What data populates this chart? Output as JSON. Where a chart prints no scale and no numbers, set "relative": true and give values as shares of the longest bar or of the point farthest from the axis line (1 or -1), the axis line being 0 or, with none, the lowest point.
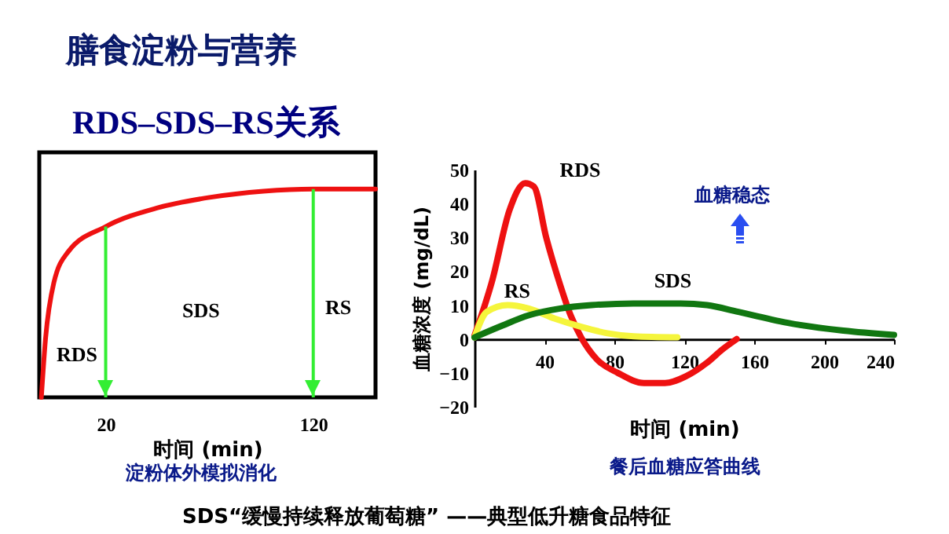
{
  "chart_data": [
    {
      "type": "line",
      "title": "膳食淀粉与营养",
      "subtitle": "RDS–SDS–RS关系",
      "relative": true,
      "xlabel": "时间 (min)",
      "xlim": [
        -12,
        150
      ],
      "xticks": [
        20,
        120
      ],
      "tick_labels": "x",
      "series": [
        {
          "color": "#ee1111",
          "x": [
            -11,
            -9,
            -5,
            2,
            20,
            45,
            70,
            96,
            120,
            150
          ],
          "values": [
            0,
            0.28,
            0.55,
            0.7,
            0.82,
            0.91,
            0.96,
            0.99,
            1,
            1
          ]
        }
      ],
      "ref_lines": [
        {
          "axis": "x",
          "value": 20,
          "color": "#33ee33"
        },
        {
          "axis": "x",
          "value": 120,
          "color": "#33ee33"
        }
      ],
      "annotations": [
        "RDS",
        "SDS",
        "RS",
        "淀粉体外模拟消化"
      ]
    },
    {
      "type": "line",
      "xlabel": "时间 (min)",
      "ylabel": "血糖浓度 (mg/dL)",
      "xlim": [
        0,
        240
      ],
      "xticks": [
        40,
        80,
        120,
        160,
        200,
        240
      ],
      "ylim": [
        -20,
        50
      ],
      "yticks": [
        -20,
        -10,
        0,
        10,
        20,
        30,
        40,
        50
      ],
      "series": [
        {
          "name": "RDS",
          "color": "#ee1111",
          "x": [
            0,
            10,
            20,
            29,
            34,
            41,
            49,
            55,
            61,
            70,
            82,
            97,
            109,
            121,
            133,
            142,
            150
          ],
          "values": [
            1,
            17,
            38,
            46,
            45,
            30,
            16,
            7,
            0.5,
            -6,
            -10,
            -13,
            -13,
            -11,
            -7,
            -3,
            0
          ]
        },
        {
          "name": "RS",
          "color": "#f5f53c",
          "x": [
            0,
            7,
            19,
            31,
            46,
            61,
            76,
            91,
            116
          ],
          "values": [
            0.5,
            8,
            10,
            9,
            6,
            3.6,
            1.7,
            0.8,
            0.5
          ]
        },
        {
          "name": "SDS",
          "color": "#117711",
          "x": [
            0,
            16,
            31,
            49,
            67,
            91,
            118,
            133,
            151,
            181,
            211,
            240
          ],
          "values": [
            0.5,
            4,
            7,
            9,
            10,
            10.5,
            10.5,
            10,
            8,
            4.6,
            2.5,
            1.2
          ]
        }
      ],
      "annotations": [
        "血糖稳态",
        "餐后血糖应答曲线",
        "SDS“缓慢持续释放葡萄糖” ——典型低升糖食品特征"
      ]
    }
  ]
}
